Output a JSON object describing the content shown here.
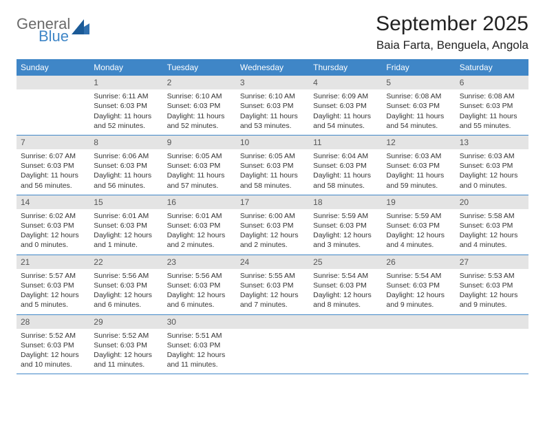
{
  "brand": {
    "word1": "General",
    "word2": "Blue",
    "mark_color": "#2f6fae"
  },
  "title": "September 2025",
  "location": "Baia Farta, Benguela, Angola",
  "colors": {
    "header_bg": "#3f86c7",
    "header_text": "#ffffff",
    "daynum_bg": "#e4e4e4",
    "daynum_text": "#555555",
    "rule": "#3f86c7",
    "body_text": "#333333",
    "page_bg": "#ffffff"
  },
  "day_names": [
    "Sunday",
    "Monday",
    "Tuesday",
    "Wednesday",
    "Thursday",
    "Friday",
    "Saturday"
  ],
  "weeks": [
    [
      null,
      {
        "n": "1",
        "sr": "Sunrise: 6:11 AM",
        "ss": "Sunset: 6:03 PM",
        "dl": "Daylight: 11 hours and 52 minutes."
      },
      {
        "n": "2",
        "sr": "Sunrise: 6:10 AM",
        "ss": "Sunset: 6:03 PM",
        "dl": "Daylight: 11 hours and 52 minutes."
      },
      {
        "n": "3",
        "sr": "Sunrise: 6:10 AM",
        "ss": "Sunset: 6:03 PM",
        "dl": "Daylight: 11 hours and 53 minutes."
      },
      {
        "n": "4",
        "sr": "Sunrise: 6:09 AM",
        "ss": "Sunset: 6:03 PM",
        "dl": "Daylight: 11 hours and 54 minutes."
      },
      {
        "n": "5",
        "sr": "Sunrise: 6:08 AM",
        "ss": "Sunset: 6:03 PM",
        "dl": "Daylight: 11 hours and 54 minutes."
      },
      {
        "n": "6",
        "sr": "Sunrise: 6:08 AM",
        "ss": "Sunset: 6:03 PM",
        "dl": "Daylight: 11 hours and 55 minutes."
      }
    ],
    [
      {
        "n": "7",
        "sr": "Sunrise: 6:07 AM",
        "ss": "Sunset: 6:03 PM",
        "dl": "Daylight: 11 hours and 56 minutes."
      },
      {
        "n": "8",
        "sr": "Sunrise: 6:06 AM",
        "ss": "Sunset: 6:03 PM",
        "dl": "Daylight: 11 hours and 56 minutes."
      },
      {
        "n": "9",
        "sr": "Sunrise: 6:05 AM",
        "ss": "Sunset: 6:03 PM",
        "dl": "Daylight: 11 hours and 57 minutes."
      },
      {
        "n": "10",
        "sr": "Sunrise: 6:05 AM",
        "ss": "Sunset: 6:03 PM",
        "dl": "Daylight: 11 hours and 58 minutes."
      },
      {
        "n": "11",
        "sr": "Sunrise: 6:04 AM",
        "ss": "Sunset: 6:03 PM",
        "dl": "Daylight: 11 hours and 58 minutes."
      },
      {
        "n": "12",
        "sr": "Sunrise: 6:03 AM",
        "ss": "Sunset: 6:03 PM",
        "dl": "Daylight: 11 hours and 59 minutes."
      },
      {
        "n": "13",
        "sr": "Sunrise: 6:03 AM",
        "ss": "Sunset: 6:03 PM",
        "dl": "Daylight: 12 hours and 0 minutes."
      }
    ],
    [
      {
        "n": "14",
        "sr": "Sunrise: 6:02 AM",
        "ss": "Sunset: 6:03 PM",
        "dl": "Daylight: 12 hours and 0 minutes."
      },
      {
        "n": "15",
        "sr": "Sunrise: 6:01 AM",
        "ss": "Sunset: 6:03 PM",
        "dl": "Daylight: 12 hours and 1 minute."
      },
      {
        "n": "16",
        "sr": "Sunrise: 6:01 AM",
        "ss": "Sunset: 6:03 PM",
        "dl": "Daylight: 12 hours and 2 minutes."
      },
      {
        "n": "17",
        "sr": "Sunrise: 6:00 AM",
        "ss": "Sunset: 6:03 PM",
        "dl": "Daylight: 12 hours and 2 minutes."
      },
      {
        "n": "18",
        "sr": "Sunrise: 5:59 AM",
        "ss": "Sunset: 6:03 PM",
        "dl": "Daylight: 12 hours and 3 minutes."
      },
      {
        "n": "19",
        "sr": "Sunrise: 5:59 AM",
        "ss": "Sunset: 6:03 PM",
        "dl": "Daylight: 12 hours and 4 minutes."
      },
      {
        "n": "20",
        "sr": "Sunrise: 5:58 AM",
        "ss": "Sunset: 6:03 PM",
        "dl": "Daylight: 12 hours and 4 minutes."
      }
    ],
    [
      {
        "n": "21",
        "sr": "Sunrise: 5:57 AM",
        "ss": "Sunset: 6:03 PM",
        "dl": "Daylight: 12 hours and 5 minutes."
      },
      {
        "n": "22",
        "sr": "Sunrise: 5:56 AM",
        "ss": "Sunset: 6:03 PM",
        "dl": "Daylight: 12 hours and 6 minutes."
      },
      {
        "n": "23",
        "sr": "Sunrise: 5:56 AM",
        "ss": "Sunset: 6:03 PM",
        "dl": "Daylight: 12 hours and 6 minutes."
      },
      {
        "n": "24",
        "sr": "Sunrise: 5:55 AM",
        "ss": "Sunset: 6:03 PM",
        "dl": "Daylight: 12 hours and 7 minutes."
      },
      {
        "n": "25",
        "sr": "Sunrise: 5:54 AM",
        "ss": "Sunset: 6:03 PM",
        "dl": "Daylight: 12 hours and 8 minutes."
      },
      {
        "n": "26",
        "sr": "Sunrise: 5:54 AM",
        "ss": "Sunset: 6:03 PM",
        "dl": "Daylight: 12 hours and 9 minutes."
      },
      {
        "n": "27",
        "sr": "Sunrise: 5:53 AM",
        "ss": "Sunset: 6:03 PM",
        "dl": "Daylight: 12 hours and 9 minutes."
      }
    ],
    [
      {
        "n": "28",
        "sr": "Sunrise: 5:52 AM",
        "ss": "Sunset: 6:03 PM",
        "dl": "Daylight: 12 hours and 10 minutes."
      },
      {
        "n": "29",
        "sr": "Sunrise: 5:52 AM",
        "ss": "Sunset: 6:03 PM",
        "dl": "Daylight: 12 hours and 11 minutes."
      },
      {
        "n": "30",
        "sr": "Sunrise: 5:51 AM",
        "ss": "Sunset: 6:03 PM",
        "dl": "Daylight: 12 hours and 11 minutes."
      },
      null,
      null,
      null,
      null
    ]
  ]
}
